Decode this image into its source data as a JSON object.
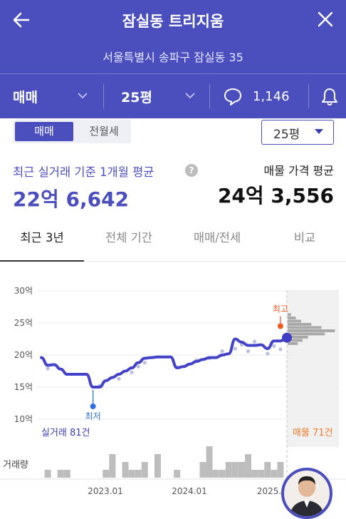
{
  "header": {
    "title": "잠실동 트리지움",
    "address": "서울특별시 송파구 잠실동 35"
  },
  "filter_bar": {
    "deal_type": "매매",
    "size": "25평",
    "comment_count": "1,146"
  },
  "toggle": {
    "sale_label": "매매",
    "jeonse_label": "전월세"
  },
  "size_selector": {
    "label": "25평"
  },
  "summary": {
    "avg_label": "최근 실거래 기준 1개월 평균",
    "avg_value": "22억 6,642",
    "listing_label": "매물 가격 평균",
    "listing_value": "24억 3,556"
  },
  "tabs": [
    {
      "label": "최근 3년",
      "active": true
    },
    {
      "label": "전체 기간",
      "active": false
    },
    {
      "label": "매매/전세",
      "active": false
    },
    {
      "label": "비교",
      "active": false
    }
  ],
  "chart_data": {
    "type": "line",
    "y_ticks": [
      "30억",
      "25억",
      "20억",
      "15억",
      "10억"
    ],
    "ylim": [
      10,
      30
    ],
    "x_ticks": [
      "2023.01",
      "2024.01",
      "2025."
    ],
    "annotations": {
      "low": "최저",
      "high": "최고"
    },
    "trade_count_label": "실거래 81건",
    "listing_count_label": "매물 71건",
    "volume_label": "거래량",
    "series": [
      {
        "x": [
          0,
          1,
          2,
          3,
          4,
          5,
          6,
          7,
          8,
          9,
          10,
          11,
          12,
          13,
          14,
          15,
          16,
          17,
          18,
          19,
          20,
          21,
          22,
          23,
          24,
          25,
          26,
          27,
          28,
          29,
          30,
          31,
          32,
          33,
          34,
          35,
          36,
          37,
          38
        ],
        "values": [
          19.6,
          18.4,
          18.5,
          17.8,
          17.0,
          17.0,
          17.0,
          17.0,
          15.0,
          15.0,
          16.0,
          16.5,
          17.0,
          17.5,
          18.0,
          18.8,
          19.5,
          19.6,
          19.7,
          19.7,
          19.7,
          18.0,
          18.2,
          18.6,
          19.0,
          19.3,
          19.6,
          19.6,
          20.0,
          20.2,
          22.5,
          22.0,
          21.5,
          21.5,
          21.6,
          21.0,
          22.2,
          22.2,
          22.7
        ]
      }
    ],
    "trade_points": [
      [
        1,
        17.9
      ],
      [
        9,
        15.2
      ],
      [
        12,
        16.3
      ],
      [
        14,
        17.3
      ],
      [
        15,
        18.2
      ],
      [
        16,
        18.8
      ],
      [
        21,
        18.1
      ],
      [
        24,
        19.2
      ],
      [
        26,
        19.5
      ],
      [
        28,
        20.6
      ],
      [
        30,
        21.0
      ],
      [
        31,
        21.6
      ],
      [
        32,
        20.6
      ],
      [
        33,
        22.1
      ],
      [
        35,
        20.2
      ],
      [
        36,
        21.4
      ],
      [
        37,
        20.9
      ]
    ],
    "low_point": [
      8,
      12.0
    ],
    "high_point": [
      37,
      24.5
    ],
    "volume": [
      0,
      1,
      0,
      1,
      1,
      0,
      0,
      0,
      0,
      0,
      1,
      3,
      0,
      2,
      1,
      1,
      2,
      0,
      3,
      0,
      0,
      1,
      0,
      0,
      0,
      2,
      4,
      1,
      1,
      2,
      2,
      2,
      3,
      1,
      1,
      2,
      1,
      2,
      0
    ],
    "listing_histogram": [
      0.5,
      1.2,
      2.0,
      3.5,
      5.0,
      7.0,
      5.5,
      3.0,
      2.2,
      1.5
    ]
  }
}
